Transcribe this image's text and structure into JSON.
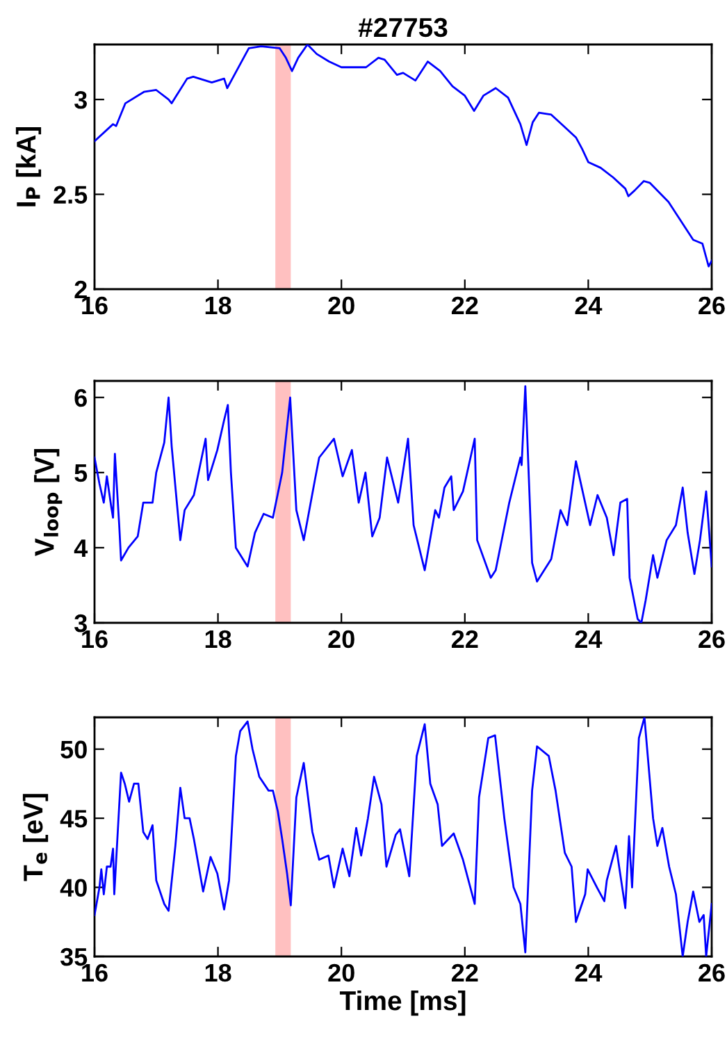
{
  "chart_data": [
    {
      "type": "line",
      "title": "#27753",
      "ylabel": "I$_{P}$ [kA]",
      "xlim": [
        16,
        26
      ],
      "xticks": [
        16,
        18,
        20,
        22,
        24,
        26
      ],
      "ylim": [
        2,
        3.29
      ],
      "yticks": [
        2,
        2.5,
        3
      ],
      "grid": false,
      "legend": false,
      "bands": [
        {
          "axis": "x",
          "from": 18.93,
          "to": 19.18,
          "color": "#ffc0c0"
        }
      ],
      "series": [
        {
          "color": "#0000ff",
          "x": [
            16,
            16.3,
            16.35,
            16.5,
            16.8,
            17.0,
            17.2,
            17.25,
            17.5,
            17.6,
            17.9,
            18.1,
            18.15,
            18.25,
            18.5,
            18.7,
            19.0,
            19.1,
            19.2,
            19.3,
            19.45,
            19.6,
            19.8,
            20.0,
            20.2,
            20.4,
            20.6,
            20.7,
            20.9,
            21.0,
            21.2,
            21.4,
            21.6,
            21.8,
            22.0,
            22.15,
            22.3,
            22.5,
            22.7,
            22.9,
            23.0,
            23.1,
            23.2,
            23.4,
            23.6,
            23.8,
            23.9,
            24.0,
            24.2,
            24.4,
            24.6,
            24.65,
            24.75,
            24.9,
            25.0,
            25.3,
            25.5,
            25.7,
            25.85,
            25.95,
            26
          ],
          "values": [
            2.78,
            2.87,
            2.86,
            2.98,
            3.04,
            3.05,
            3.0,
            2.98,
            3.11,
            3.12,
            3.09,
            3.11,
            3.06,
            3.12,
            3.27,
            3.28,
            3.27,
            3.22,
            3.15,
            3.22,
            3.29,
            3.24,
            3.2,
            3.17,
            3.17,
            3.17,
            3.22,
            3.21,
            3.13,
            3.14,
            3.1,
            3.2,
            3.15,
            3.07,
            3.02,
            2.94,
            3.02,
            3.06,
            3.01,
            2.87,
            2.76,
            2.88,
            2.93,
            2.92,
            2.86,
            2.8,
            2.74,
            2.67,
            2.64,
            2.59,
            2.53,
            2.49,
            2.52,
            2.57,
            2.56,
            2.46,
            2.36,
            2.26,
            2.24,
            2.12,
            2.15
          ]
        }
      ]
    },
    {
      "type": "line",
      "ylabel": "V$_{loop}$ [V]",
      "xlim": [
        16,
        26
      ],
      "xticks": [
        16,
        18,
        20,
        22,
        24,
        26
      ],
      "ylim": [
        3,
        6.22
      ],
      "yticks": [
        3,
        4,
        5,
        6
      ],
      "grid": false,
      "legend": false,
      "bands": [
        {
          "axis": "x",
          "from": 18.93,
          "to": 19.18,
          "color": "#ffc0c0"
        }
      ],
      "series": [
        {
          "color": "#0000ff",
          "x": [
            16.0,
            16.08,
            16.15,
            16.2,
            16.27,
            16.3,
            16.33,
            16.4,
            16.43,
            16.55,
            16.7,
            16.79,
            16.94,
            17.0,
            17.13,
            17.2,
            17.25,
            17.39,
            17.46,
            17.61,
            17.8,
            17.84,
            17.99,
            18.1,
            18.16,
            18.21,
            18.29,
            18.48,
            18.6,
            18.74,
            18.89,
            19.04,
            19.17,
            19.27,
            19.39,
            19.57,
            19.64,
            19.88,
            20.02,
            20.17,
            20.28,
            20.39,
            20.5,
            20.62,
            20.74,
            20.92,
            21.08,
            21.17,
            21.35,
            21.52,
            21.58,
            21.67,
            21.78,
            21.82,
            21.97,
            22.16,
            22.2,
            22.42,
            22.5,
            22.72,
            22.9,
            22.92,
            22.98,
            23.09,
            23.17,
            23.4,
            23.55,
            23.66,
            23.8,
            24.03,
            24.15,
            24.3,
            24.41,
            24.52,
            24.63,
            24.67,
            24.8,
            24.86,
            24.93,
            25.05,
            25.12,
            25.27,
            25.42,
            25.53,
            25.61,
            25.72,
            25.81,
            25.91,
            26.0
          ],
          "values": [
            5.2,
            4.85,
            4.6,
            4.95,
            4.55,
            4.4,
            5.25,
            4.3,
            3.83,
            4.0,
            4.15,
            4.6,
            4.6,
            5.0,
            5.4,
            6.0,
            5.35,
            4.1,
            4.5,
            4.7,
            5.45,
            4.9,
            5.3,
            5.7,
            5.9,
            5.0,
            4.0,
            3.75,
            4.2,
            4.45,
            4.4,
            5.0,
            6.0,
            4.5,
            4.1,
            4.9,
            5.2,
            5.45,
            4.95,
            5.3,
            4.6,
            5.0,
            4.15,
            4.4,
            5.2,
            4.6,
            5.45,
            4.3,
            3.7,
            4.5,
            4.4,
            4.8,
            4.95,
            4.5,
            4.75,
            5.45,
            4.1,
            3.6,
            3.7,
            4.6,
            5.2,
            5.1,
            6.15,
            3.8,
            3.55,
            3.85,
            4.5,
            4.3,
            5.15,
            4.3,
            4.7,
            4.4,
            3.9,
            4.6,
            4.65,
            3.6,
            3.05,
            3.0,
            3.3,
            3.9,
            3.6,
            4.1,
            4.3,
            4.8,
            4.2,
            3.65,
            4.1,
            4.75,
            3.75
          ]
        }
      ]
    },
    {
      "type": "line",
      "xlabel": "Time [ms]",
      "ylabel": "T$_{e}$ [eV]",
      "xlim": [
        16,
        26
      ],
      "xticks": [
        16,
        18,
        20,
        22,
        24,
        26
      ],
      "ylim": [
        35,
        52.3
      ],
      "yticks": [
        35,
        40,
        45,
        50
      ],
      "grid": false,
      "legend": false,
      "bands": [
        {
          "axis": "x",
          "from": 18.93,
          "to": 19.18,
          "color": "#ffc0c0"
        }
      ],
      "series": [
        {
          "color": "#0000ff",
          "x": [
            16.0,
            16.08,
            16.11,
            16.15,
            16.2,
            16.26,
            16.3,
            16.32,
            16.43,
            16.49,
            16.56,
            16.64,
            16.71,
            16.79,
            16.86,
            16.94,
            17.0,
            17.13,
            17.2,
            17.31,
            17.39,
            17.46,
            17.54,
            17.61,
            17.76,
            17.88,
            17.99,
            18.1,
            18.18,
            18.29,
            18.36,
            18.48,
            18.56,
            18.67,
            18.82,
            18.89,
            18.97,
            19.04,
            19.12,
            19.18,
            19.27,
            19.39,
            19.53,
            19.64,
            19.79,
            19.88,
            20.02,
            20.13,
            20.24,
            20.32,
            20.43,
            20.53,
            20.65,
            20.73,
            20.88,
            20.95,
            21.1,
            21.22,
            21.35,
            21.44,
            21.56,
            21.63,
            21.82,
            21.97,
            22.16,
            22.23,
            22.38,
            22.49,
            22.64,
            22.79,
            22.9,
            22.98,
            23.09,
            23.17,
            23.36,
            23.47,
            23.62,
            23.73,
            23.8,
            23.95,
            23.99,
            24.14,
            24.26,
            24.3,
            24.45,
            24.6,
            24.66,
            24.71,
            24.82,
            24.91,
            25.05,
            25.12,
            25.2,
            25.31,
            25.42,
            25.53,
            25.61,
            25.7,
            25.8,
            25.87,
            25.91,
            26.0
          ],
          "values": [
            38.0,
            40.0,
            41.3,
            39.5,
            41.5,
            41.5,
            42.8,
            39.5,
            48.3,
            47.5,
            46.2,
            47.5,
            47.5,
            44.0,
            43.5,
            44.5,
            40.5,
            38.8,
            38.3,
            43.0,
            47.2,
            45.0,
            45.0,
            43.5,
            39.7,
            42.2,
            41.0,
            38.4,
            40.5,
            49.5,
            51.3,
            52.0,
            50.0,
            48.0,
            47.0,
            47.0,
            45.5,
            43.5,
            41.0,
            38.7,
            46.5,
            49.0,
            44.0,
            42.0,
            42.3,
            40.0,
            42.8,
            40.8,
            44.3,
            42.3,
            45.0,
            48.0,
            46.0,
            41.5,
            43.8,
            44.2,
            40.8,
            49.5,
            51.8,
            47.5,
            46.0,
            43.0,
            43.9,
            42.0,
            38.8,
            46.5,
            50.8,
            51.0,
            45.0,
            40.0,
            38.8,
            35.3,
            47.0,
            50.2,
            49.5,
            47.0,
            42.5,
            41.5,
            37.5,
            39.5,
            41.3,
            40.0,
            39.0,
            40.5,
            43.0,
            38.5,
            43.7,
            40.0,
            50.8,
            52.3,
            45.0,
            43.0,
            44.3,
            41.5,
            39.5,
            35.0,
            37.5,
            39.7,
            37.5,
            38.0,
            35.0,
            38.8
          ]
        }
      ]
    }
  ]
}
